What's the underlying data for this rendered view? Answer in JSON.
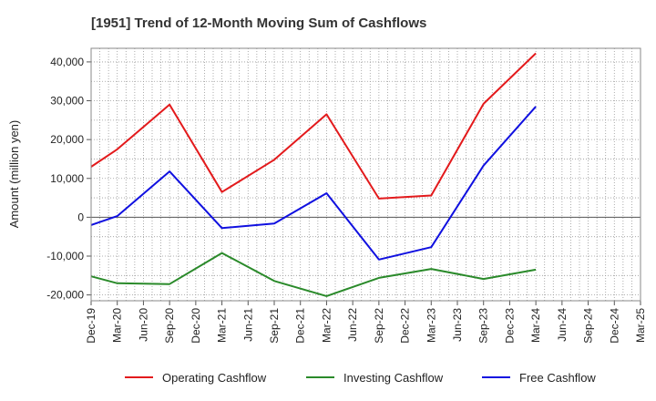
{
  "chart_data": {
    "type": "line",
    "title": "[1951]  Trend of 12-Month Moving Sum of Cashflows",
    "xlabel": "",
    "ylabel": "Amount (million yen)",
    "x_ticks": [
      "Dec-19",
      "Mar-20",
      "Jun-20",
      "Sep-20",
      "Dec-20",
      "Mar-21",
      "Jun-21",
      "Sep-21",
      "Dec-21",
      "Mar-22",
      "Jun-22",
      "Sep-22",
      "Dec-22",
      "Mar-23",
      "Jun-23",
      "Sep-23",
      "Dec-23",
      "Mar-24",
      "Jun-24",
      "Sep-24",
      "Dec-24",
      "Mar-25"
    ],
    "y_ticks": [
      -20000,
      -10000,
      0,
      10000,
      20000,
      30000,
      40000
    ],
    "y_tick_labels": [
      "-20,000",
      "-10,000",
      "0",
      "10,000",
      "20,000",
      "30,000",
      "40,000"
    ],
    "ylim": [
      -21500,
      43500
    ],
    "grid": true,
    "legend_position": "bottom",
    "series": [
      {
        "name": "Operating Cashflow",
        "color": "#e31a1c",
        "x": [
          "Dec-19",
          "Mar-20",
          "Sep-20",
          "Mar-21",
          "Sep-21",
          "Mar-22",
          "Sep-22",
          "Mar-23",
          "Sep-23",
          "Mar-24"
        ],
        "values": [
          13000,
          17500,
          29000,
          6500,
          14800,
          26500,
          4800,
          5600,
          29200,
          42200
        ]
      },
      {
        "name": "Investing Cashflow",
        "color": "#2a8a2a",
        "x": [
          "Dec-19",
          "Mar-20",
          "Sep-20",
          "Mar-21",
          "Sep-21",
          "Mar-22",
          "Sep-22",
          "Mar-23",
          "Sep-23",
          "Mar-24"
        ],
        "values": [
          -15200,
          -17000,
          -17200,
          -9200,
          -16400,
          -20300,
          -15600,
          -13300,
          -15900,
          -13500
        ]
      },
      {
        "name": "Free Cashflow",
        "color": "#1010e0",
        "x": [
          "Dec-19",
          "Mar-20",
          "Sep-20",
          "Mar-21",
          "Sep-21",
          "Mar-22",
          "Sep-22",
          "Mar-23",
          "Sep-23",
          "Mar-24"
        ],
        "values": [
          -2000,
          300,
          11800,
          -2800,
          -1600,
          6200,
          -10900,
          -7700,
          13300,
          28500
        ]
      }
    ]
  }
}
